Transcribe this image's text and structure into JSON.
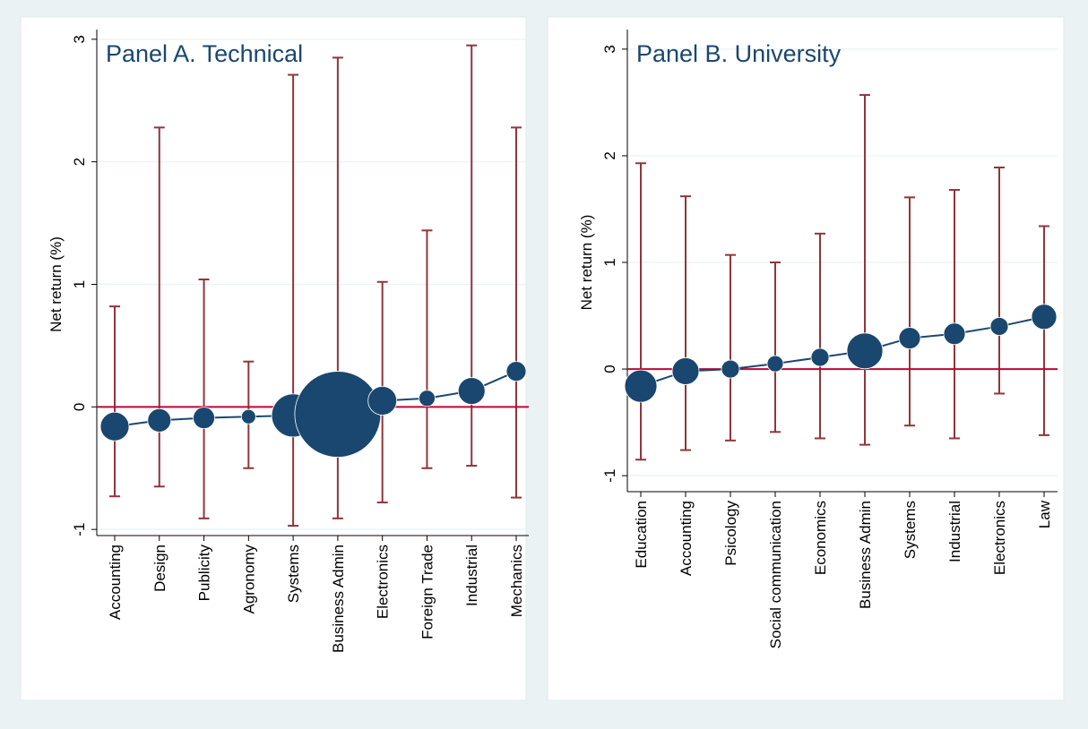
{
  "figure": {
    "colors": {
      "outer_bg": "#eaf2f3",
      "panel_bg": "#ffffff",
      "gridline": "#eaf2f3",
      "axis": "#000000",
      "marker": "#1a476f",
      "errorbar": "#90353b",
      "zero_line": "#c10534"
    }
  },
  "chart_data": [
    {
      "type": "scatter",
      "panel_title": "Panel A. Technical",
      "ylabel": "Net return (%)",
      "xlabel": "",
      "ylim": [
        -1.05,
        3.05
      ],
      "yticks": [
        -1,
        0,
        1,
        2,
        3
      ],
      "grid": true,
      "reference_line_y": 0,
      "categories": [
        "Accounting",
        "Design",
        "Publicity",
        "Agronomy",
        "Systems",
        "Business Admin",
        "Electronics",
        "Foreign Trade",
        "Industrial",
        "Mechanics"
      ],
      "estimate": [
        -0.16,
        -0.11,
        -0.09,
        -0.08,
        -0.07,
        -0.06,
        0.05,
        0.07,
        0.13,
        0.29
      ],
      "ci_low": [
        -0.73,
        -0.65,
        -0.91,
        -0.5,
        -0.97,
        -0.91,
        -0.78,
        -0.5,
        -0.48,
        -0.74
      ],
      "ci_high": [
        0.82,
        2.28,
        1.04,
        0.37,
        2.71,
        2.85,
        1.02,
        1.44,
        2.95,
        2.28
      ],
      "marker_weight": [
        16,
        13,
        12,
        8,
        24,
        48,
        16,
        9,
        15,
        11
      ]
    },
    {
      "type": "scatter",
      "panel_title": "Panel B. University",
      "ylabel": "Net return (%)",
      "xlabel": "",
      "ylim": [
        -1.15,
        3.15
      ],
      "yticks": [
        -1,
        0,
        1,
        2,
        3
      ],
      "grid": true,
      "reference_line_y": 0,
      "categories": [
        "Education",
        "Accounting",
        "Psicology",
        "Social communication",
        "Economics",
        "Business Admin",
        "Systems",
        "Industrial",
        "Electronics",
        "Law"
      ],
      "estimate": [
        -0.16,
        -0.02,
        0.0,
        0.05,
        0.11,
        0.17,
        0.29,
        0.33,
        0.4,
        0.49
      ],
      "ci_low": [
        -0.85,
        -0.76,
        -0.67,
        -0.59,
        -0.65,
        -0.71,
        -0.53,
        -0.65,
        -0.23,
        -0.62
      ],
      "ci_high": [
        1.93,
        1.62,
        1.07,
        1.0,
        1.27,
        2.57,
        1.61,
        1.68,
        1.89,
        1.34
      ],
      "marker_weight": [
        18,
        15,
        10,
        9,
        10,
        20,
        12,
        12,
        10,
        14
      ]
    }
  ]
}
